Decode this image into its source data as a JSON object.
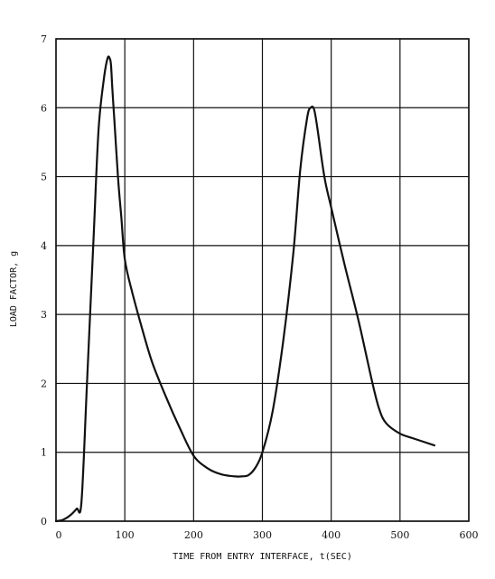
{
  "chart_data": {
    "type": "line",
    "title": "",
    "xlabel": "TIME FROM ENTRY INTERFACE, t(SEC)",
    "ylabel": "LOAD FACTOR, g",
    "xlim": [
      0,
      600
    ],
    "ylim": [
      0,
      7
    ],
    "x_ticks": [
      "0",
      "100",
      "200",
      "300",
      "400",
      "500",
      "600"
    ],
    "y_ticks": [
      "0",
      "1",
      "2",
      "3",
      "4",
      "5",
      "6",
      "7"
    ],
    "grid": true,
    "legend": "none",
    "series": [
      {
        "x": [
          0,
          10,
          20,
          30,
          37,
          45,
          55,
          62,
          70,
          75,
          78,
          80,
          82,
          85,
          90,
          95,
          100,
          110,
          125,
          140,
          160,
          180,
          200,
          220,
          240,
          260,
          270,
          280,
          290,
          300,
          315,
          330,
          345,
          355,
          365,
          370,
          375,
          380,
          390,
          400,
          420,
          440,
          460,
          470,
          480,
          500,
          520,
          550
        ],
        "y": [
          0,
          0.02,
          0.08,
          0.18,
          0.28,
          2.0,
          4.2,
          5.7,
          6.45,
          6.72,
          6.72,
          6.62,
          6.25,
          5.8,
          5.0,
          4.4,
          3.8,
          3.35,
          2.8,
          2.3,
          1.8,
          1.35,
          0.95,
          0.77,
          0.68,
          0.65,
          0.65,
          0.67,
          0.78,
          1.0,
          1.6,
          2.6,
          3.9,
          5.1,
          5.85,
          6.0,
          5.98,
          5.7,
          5.0,
          4.55,
          3.7,
          2.9,
          2.0,
          1.62,
          1.42,
          1.27,
          1.2,
          1.1
        ]
      }
    ]
  }
}
